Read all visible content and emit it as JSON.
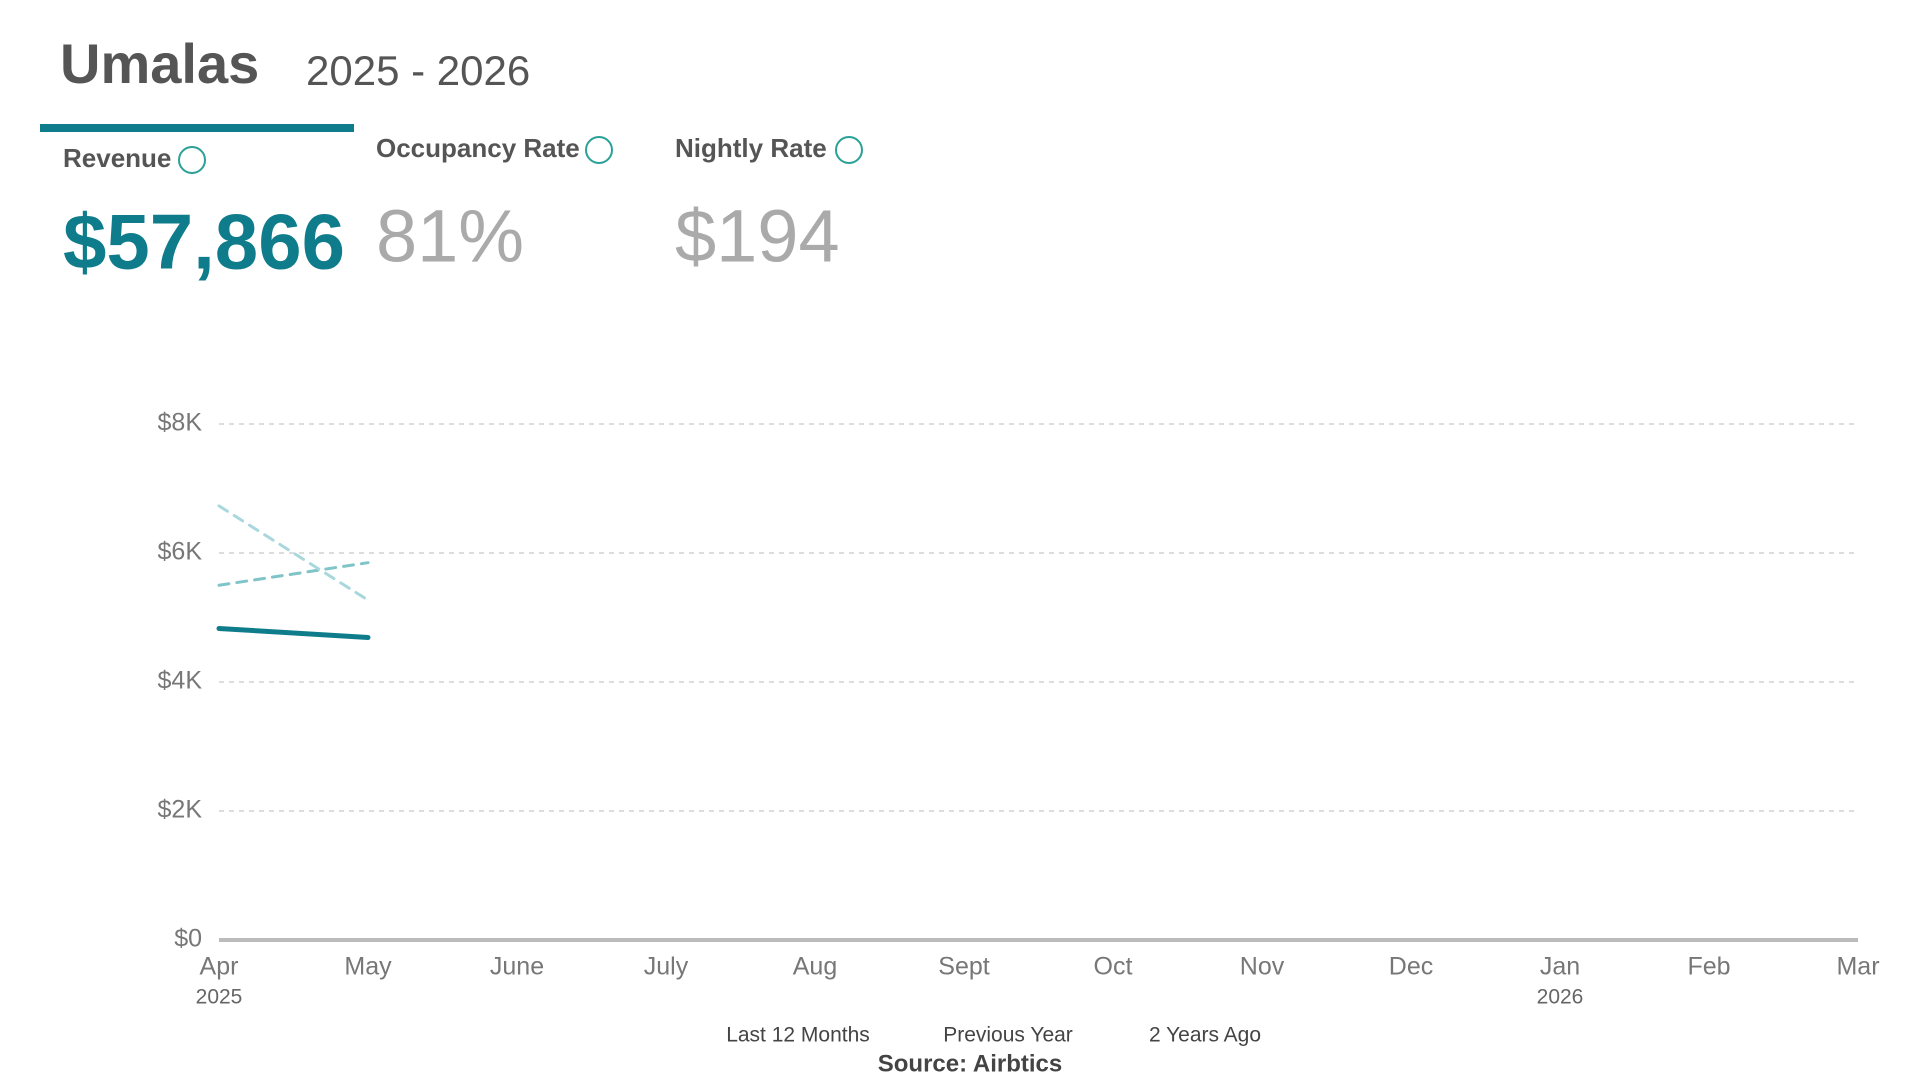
{
  "header": {
    "title": "Umalas",
    "subtitle": "2025 - 2026"
  },
  "metrics": [
    {
      "label": "Revenue",
      "value": "$57,866"
    },
    {
      "label": "Occupancy Rate",
      "value": "81%"
    },
    {
      "label": "Nightly Rate",
      "value": "$194"
    }
  ],
  "chart_data": {
    "type": "line",
    "categories": [
      "Apr",
      "May",
      "June",
      "July",
      "Aug",
      "Sept",
      "Oct",
      "Nov",
      "Dec",
      "Jan",
      "Feb",
      "Mar"
    ],
    "category_years": [
      "2025",
      null,
      null,
      null,
      null,
      null,
      null,
      null,
      null,
      "2026",
      null,
      null
    ],
    "series": [
      {
        "name": "Last 12 Months",
        "color": "#0f7c8c",
        "dashed": false,
        "values": [
          4830,
          4690,
          null,
          null,
          null,
          null,
          null,
          null,
          null,
          null,
          null,
          null
        ]
      },
      {
        "name": "Previous Year",
        "color": "#7fc4c8",
        "dashed": true,
        "values": [
          5500,
          5850,
          null,
          null,
          null,
          null,
          null,
          null,
          null,
          null,
          null,
          null
        ]
      },
      {
        "name": "2 Years Ago",
        "color": "#a8d8dc",
        "dashed": true,
        "values": [
          6730,
          5270,
          null,
          null,
          null,
          null,
          null,
          null,
          null,
          null,
          null,
          null
        ]
      }
    ],
    "ylim": [
      0,
      8000
    ],
    "yticks": [
      {
        "value": 0,
        "label": "$0"
      },
      {
        "value": 2000,
        "label": "$2K"
      },
      {
        "value": 4000,
        "label": "$4K"
      },
      {
        "value": 6000,
        "label": "$6K"
      },
      {
        "value": 8000,
        "label": "$8K"
      }
    ],
    "grid": true,
    "source": "Source: Airbtics"
  }
}
